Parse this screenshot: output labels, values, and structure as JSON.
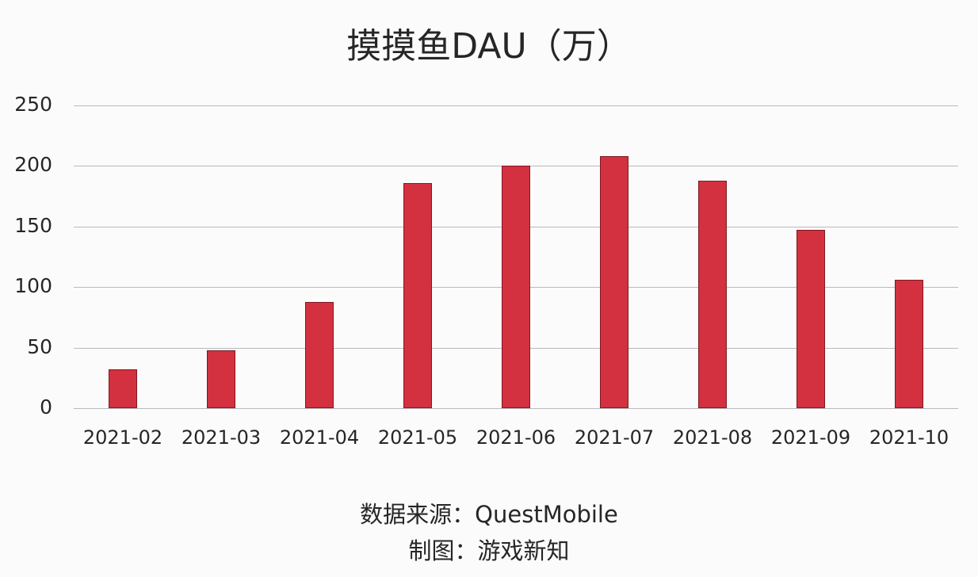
{
  "title": "摸摸鱼DAU（万）",
  "footer": {
    "source": "数据来源：QuestMobile",
    "author": "制图：游戏新知"
  },
  "colors": {
    "bar": "#d3313f",
    "bar_border": "#7e1a22",
    "grid": "#b9b9c0"
  },
  "chart_data": {
    "type": "bar",
    "title": "摸摸鱼DAU（万）",
    "xlabel": "",
    "ylabel": "",
    "categories": [
      "2021-02",
      "2021-03",
      "2021-04",
      "2021-05",
      "2021-06",
      "2021-07",
      "2021-08",
      "2021-09",
      "2021-10"
    ],
    "values": [
      32,
      48,
      88,
      186,
      200,
      208,
      188,
      147,
      106
    ],
    "ylim": [
      0,
      250
    ],
    "yticks": [
      0,
      50,
      100,
      150,
      200,
      250
    ],
    "grid": true,
    "legend": null,
    "annotations": [
      "数据来源：QuestMobile",
      "制图：游戏新知"
    ]
  }
}
